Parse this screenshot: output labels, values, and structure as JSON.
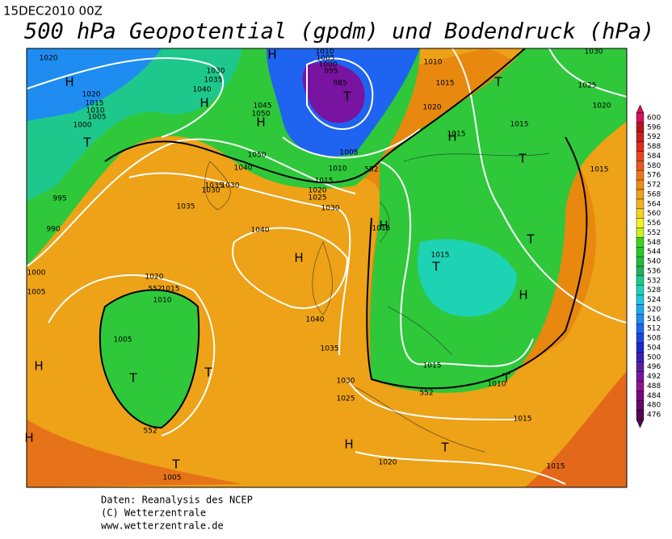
{
  "header": {
    "date": "15DEC2010 00Z",
    "title": "500 hPa Geopotential (gpdm) und Bodendruck (hPa)"
  },
  "map_labels": [
    "H",
    "1020",
    "1020",
    "1015",
    "1010",
    "1005",
    "1000",
    "T",
    "995",
    "990",
    "1000",
    "1005",
    "1030",
    "1035",
    "1040",
    "H",
    "H",
    "1010",
    "1005",
    "1000",
    "995",
    "985",
    "T",
    "1045",
    "1050",
    "H",
    "1050",
    "1040",
    "1035",
    "1030",
    "1030",
    "1035",
    "1015",
    "1010",
    "1005",
    "552",
    "1020",
    "1025",
    "1030",
    "1040",
    "H",
    "1040",
    "1035",
    "1030",
    "1025",
    "1020",
    "552",
    "1015",
    "1010",
    "1005",
    "T",
    "T",
    "552",
    "H",
    "H",
    "T",
    "1005",
    "1010",
    "1015",
    "1020",
    "1015",
    "T",
    "1025",
    "1020",
    "1015",
    "T",
    "1015",
    "1015",
    "T",
    "1015",
    "T",
    "H",
    "1015",
    "552",
    "T",
    "1010",
    "1015",
    "H",
    "T",
    "1020",
    "1015",
    "H",
    "H",
    "1030"
  ],
  "legend": {
    "levels": [
      600,
      596,
      592,
      588,
      584,
      580,
      576,
      572,
      568,
      564,
      560,
      556,
      552,
      548,
      544,
      540,
      536,
      532,
      528,
      524,
      520,
      516,
      512,
      508,
      504,
      500,
      496,
      492,
      488,
      484,
      480,
      476
    ],
    "colors": [
      "#d2145a",
      "#b4141e",
      "#c81e1e",
      "#dc2d1e",
      "#e6461e",
      "#e65a1e",
      "#f07814",
      "#f08c14",
      "#f0a01e",
      "#f0b41e",
      "#f5d21e",
      "#f5f01e",
      "#c8f01e",
      "#3cd21e",
      "#28c828",
      "#1ebe3c",
      "#1eb45a",
      "#1ec88c",
      "#1ed2b4",
      "#1ec8dc",
      "#1eaaf0",
      "#1e8cf0",
      "#1e64f0",
      "#1e46dc",
      "#1e28c8",
      "#3c1eb4",
      "#5a1ea0",
      "#7814a0",
      "#8c148c",
      "#780a78",
      "#640a64",
      "#500a50"
    ]
  },
  "footer": [
    "Daten: Reanalysis des NCEP",
    "(C) Wetterzentrale",
    "www.wetterzentrale.de"
  ]
}
